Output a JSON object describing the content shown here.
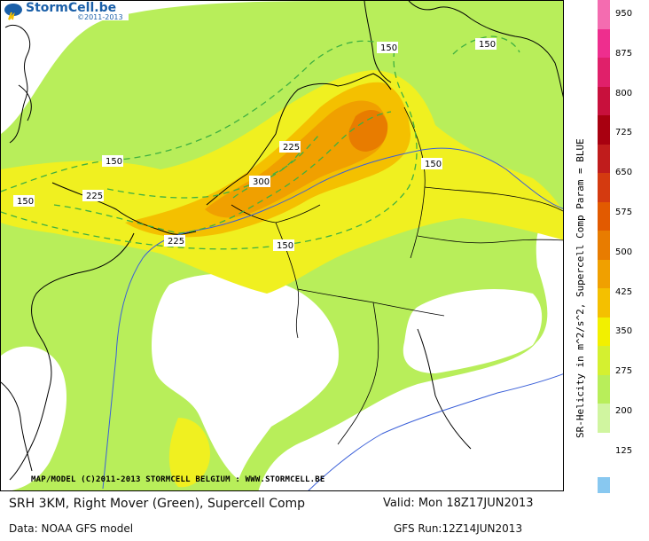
{
  "header": {
    "logo_text": "StormCell.be",
    "logo_years": "©2011-2013"
  },
  "map": {
    "credit": "MAP/MODEL (C)2011-2013 STORMCELL BELGIUM : WWW.STORMCELL.BE",
    "contour_labels": [
      "150",
      "150",
      "150",
      "225",
      "300",
      "150",
      "225",
      "150",
      "150",
      "225"
    ]
  },
  "colorbar": {
    "labels": [
      "950",
      "875",
      "800",
      "725",
      "650",
      "575",
      "500",
      "425",
      "350",
      "275",
      "200",
      "125"
    ],
    "colors": [
      "#ffffff",
      "#d0f5a0",
      "#b8ee5a",
      "#d4f030",
      "#f2f000",
      "#f4c000",
      "#f0a000",
      "#e87c00",
      "#e25a00",
      "#d43a10",
      "#c01c1c",
      "#a80010",
      "#c8103c",
      "#e0206a",
      "#ee2e8e",
      "#f46cb0"
    ],
    "bottom_color": "#88c8f0",
    "parameter_label": "SR-Helicity in m^2/s^2, Supercell Comp Param = BLUE"
  },
  "footer": {
    "title": "SRH 3KM, Right Mover (Green), Supercell Comp",
    "valid": "Valid: Mon 18Z17JUN2013",
    "data_source": "Data: NOAA GFS model",
    "run": "GFS Run:12Z14JUN2013"
  }
}
